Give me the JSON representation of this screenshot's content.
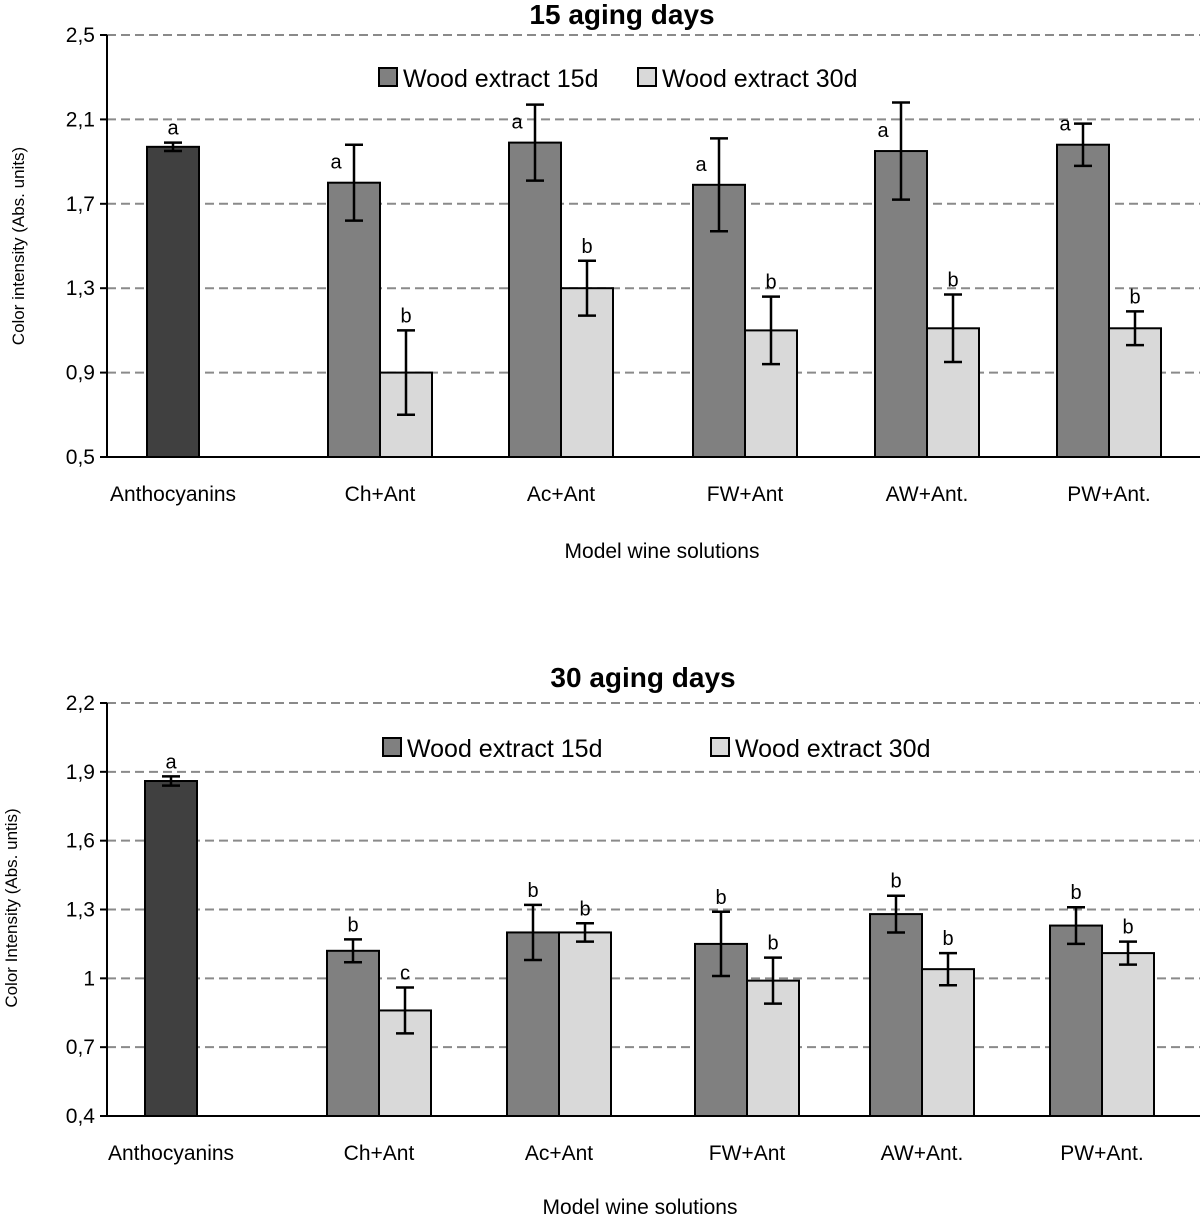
{
  "colors": {
    "anthocyanins": "#404040",
    "wood15": "#808080",
    "wood30": "#d9d9d9",
    "grid": "#8a8a8a"
  },
  "chart_data": [
    {
      "type": "bar",
      "title": "15 aging days",
      "xlabel": "Model wine solutions",
      "ylabel": "Color intensity (Abs. units)",
      "ylim": [
        0.5,
        2.5
      ],
      "yticks": [
        "0,5",
        "0,9",
        "1,3",
        "1,7",
        "2,1",
        "2,5"
      ],
      "ytick_values": [
        0.5,
        0.9,
        1.3,
        1.7,
        2.1,
        2.5
      ],
      "grid": true,
      "legend": {
        "position": "top",
        "entries": [
          "Wood extract 15d",
          "Wood extract 30d"
        ]
      },
      "categories": [
        "Anthocyanins",
        "Ch+Ant",
        "Ac+Ant",
        "FW+Ant",
        "AW+Ant.",
        "PW+Ant."
      ],
      "series": [
        {
          "name": "Anthocyanins",
          "values": [
            1.97,
            null,
            null,
            null,
            null,
            null
          ],
          "errors": [
            0.02,
            null,
            null,
            null,
            null,
            null
          ],
          "labels": [
            "a",
            null,
            null,
            null,
            null,
            null
          ]
        },
        {
          "name": "Wood extract 15d",
          "values": [
            null,
            1.8,
            1.99,
            1.79,
            1.95,
            1.98
          ],
          "errors": [
            null,
            0.18,
            0.18,
            0.22,
            0.23,
            0.1
          ],
          "labels": [
            null,
            "a",
            "a",
            "a",
            "a",
            "a"
          ]
        },
        {
          "name": "Wood extract 30d",
          "values": [
            null,
            0.9,
            1.3,
            1.1,
            1.11,
            1.11
          ],
          "errors": [
            null,
            0.2,
            0.13,
            0.16,
            0.16,
            0.08
          ],
          "labels": [
            null,
            "b",
            "b",
            "b",
            "b",
            "b"
          ]
        }
      ]
    },
    {
      "type": "bar",
      "title": "30 aging days",
      "xlabel": "Model wine solutions",
      "ylabel": "Color Intensity (Abs. untis)",
      "ylim": [
        0.4,
        2.2
      ],
      "yticks": [
        "0,4",
        "0,7",
        "1",
        "1,3",
        "1,6",
        "1,9",
        "2,2"
      ],
      "ytick_values": [
        0.4,
        0.7,
        1.0,
        1.3,
        1.6,
        1.9,
        2.2
      ],
      "grid": true,
      "legend": {
        "position": "top",
        "entries": [
          "Wood extract 15d",
          "Wood extract 30d"
        ]
      },
      "categories": [
        "Anthocyanins",
        "Ch+Ant",
        "Ac+Ant",
        "FW+Ant",
        "AW+Ant.",
        "PW+Ant."
      ],
      "series": [
        {
          "name": "Anthocyanins",
          "values": [
            1.86,
            null,
            null,
            null,
            null,
            null
          ],
          "errors": [
            0.02,
            null,
            null,
            null,
            null,
            null
          ],
          "labels": [
            "a",
            null,
            null,
            null,
            null,
            null
          ]
        },
        {
          "name": "Wood extract 15d",
          "values": [
            null,
            1.12,
            1.2,
            1.15,
            1.28,
            1.23
          ],
          "errors": [
            null,
            0.05,
            0.12,
            0.14,
            0.08,
            0.08
          ],
          "labels": [
            null,
            "b",
            "b",
            "b",
            "b",
            "b"
          ]
        },
        {
          "name": "Wood extract 30d",
          "values": [
            null,
            0.86,
            1.2,
            0.99,
            1.04,
            1.11
          ],
          "errors": [
            null,
            0.1,
            0.04,
            0.1,
            0.07,
            0.05
          ],
          "labels": [
            null,
            "c",
            "b",
            "b",
            "b",
            "b"
          ]
        }
      ]
    }
  ]
}
